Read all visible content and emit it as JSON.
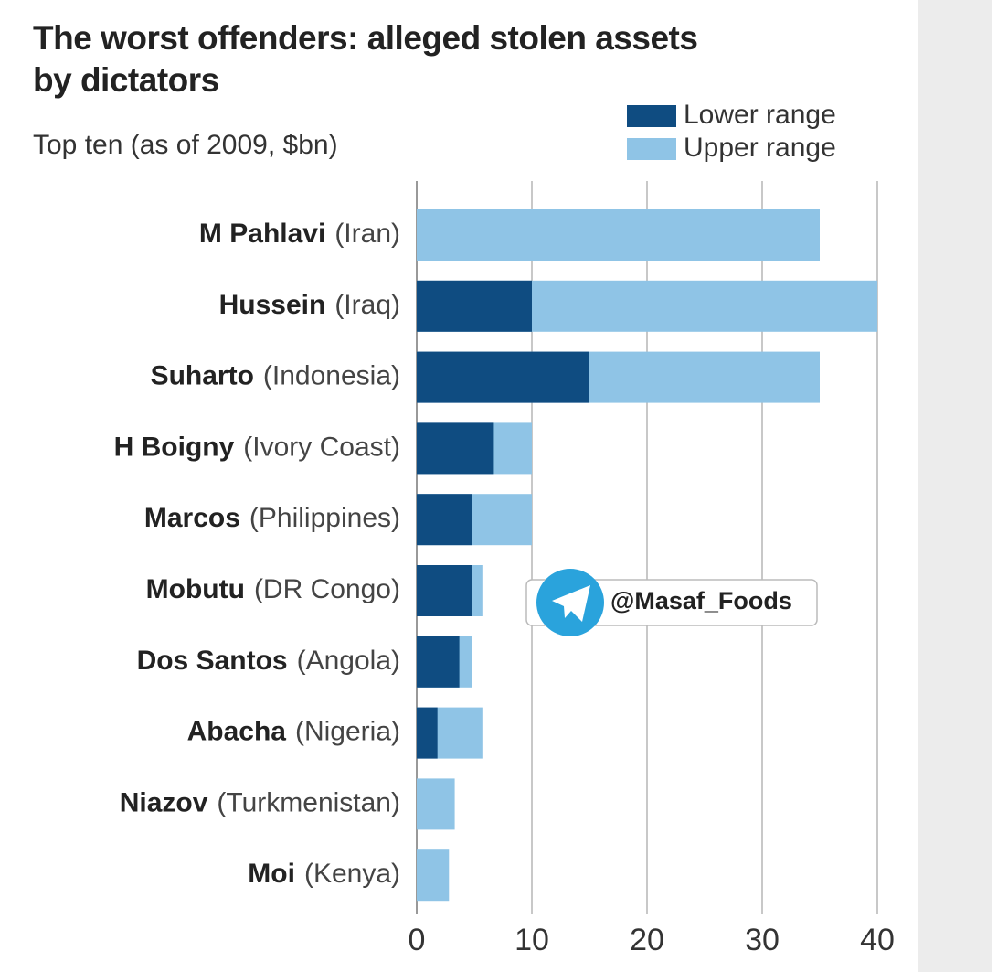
{
  "chart_data": {
    "type": "bar",
    "orientation": "horizontal",
    "overlap": true,
    "title": [
      "The worst offenders: alleged stolen assets",
      "by dictators"
    ],
    "subtitle": "Top ten (as of 2009, $bn)",
    "categories": [
      "M Pahlavi",
      "Hussein",
      "Suharto",
      "H Boigny",
      "Marcos",
      "Mobutu",
      "Dos Santos",
      "Abacha",
      "Niazov",
      "Moi"
    ],
    "countries": [
      "(Iran)",
      "(Iraq)",
      "(Indonesia)",
      "(Ivory Coast)",
      "(Philippines)",
      "(DR Congo)",
      "(Angola)",
      "(Nigeria)",
      "(Turkmenistan)",
      "(Kenya)"
    ],
    "series": [
      {
        "name": "Upper range",
        "color": "#8fc4e6",
        "values": [
          35,
          40,
          35,
          10,
          10,
          5.7,
          4.8,
          5.7,
          3.3,
          2.8
        ]
      },
      {
        "name": "Lower range",
        "color": "#0f4c81",
        "values": [
          null,
          10,
          15,
          6.7,
          4.8,
          4.8,
          3.7,
          1.8,
          null,
          null
        ]
      }
    ],
    "legend_order": [
      1,
      0
    ],
    "xlim": [
      0,
      40
    ],
    "xticks": [
      0,
      10,
      20,
      30,
      40
    ],
    "grid": true,
    "watermark": "@Masaf_Foods"
  }
}
